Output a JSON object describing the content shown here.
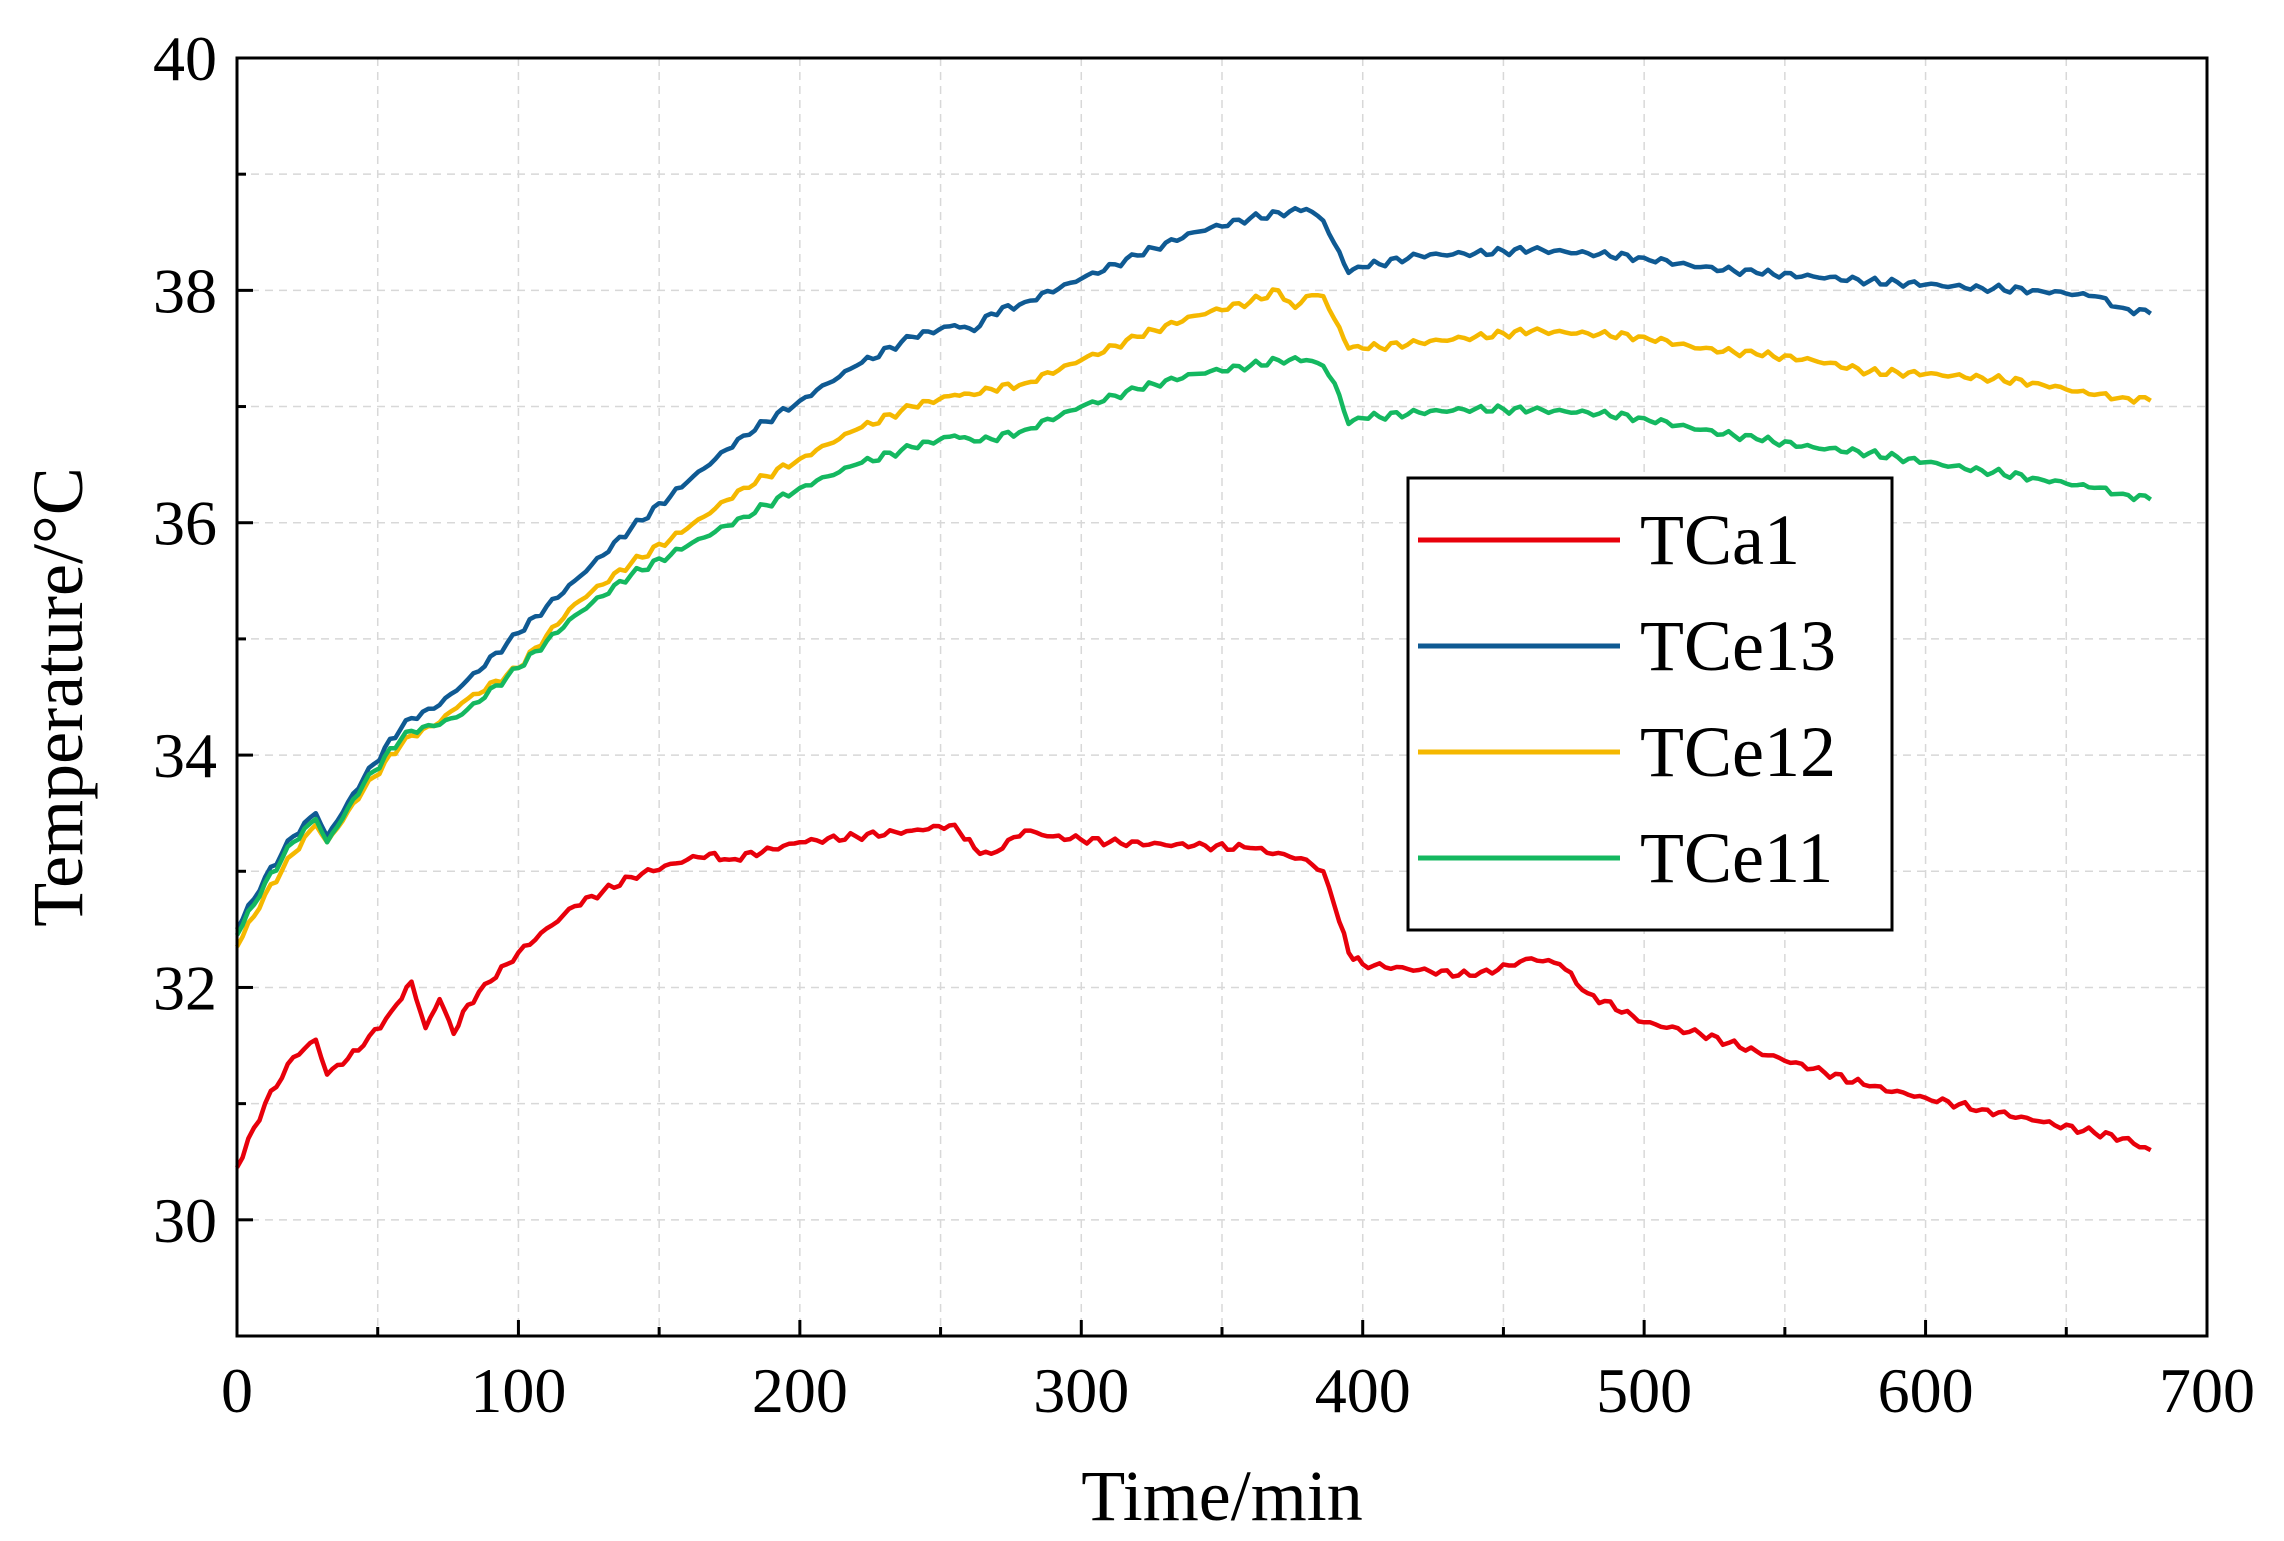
{
  "chart_data": {
    "type": "line",
    "title": "",
    "xlabel": "Time/min",
    "ylabel": "Temperature/°C",
    "xlim": [
      0,
      700
    ],
    "ylim": [
      29,
      40
    ],
    "xticks": [
      0,
      100,
      200,
      300,
      400,
      500,
      600,
      700
    ],
    "yticks": [
      30,
      32,
      34,
      36,
      38,
      40
    ],
    "xtick_labels": [
      "0",
      "100",
      "200",
      "300",
      "400",
      "500",
      "600",
      "700"
    ],
    "ytick_labels": [
      "30",
      "32",
      "34",
      "36",
      "38",
      "40"
    ],
    "grid": true,
    "legend_position": "right-middle",
    "series": [
      {
        "name": "TCa1",
        "color": "#e8000b",
        "x": [
          0,
          10,
          20,
          28,
          32,
          45,
          55,
          62,
          67,
          72,
          77,
          82,
          90,
          100,
          120,
          140,
          160,
          168,
          175,
          200,
          220,
          240,
          255,
          262,
          268,
          280,
          290,
          310,
          340,
          360,
          380,
          386,
          390,
          395,
          400,
          420,
          440,
          460,
          470,
          480,
          500,
          520,
          540,
          560,
          580,
          600,
          620,
          640,
          660,
          670,
          680
        ],
        "values": [
          30.45,
          31.0,
          31.4,
          31.55,
          31.25,
          31.5,
          31.8,
          32.05,
          31.65,
          31.9,
          31.6,
          31.85,
          32.05,
          32.3,
          32.7,
          32.95,
          33.1,
          33.15,
          33.1,
          33.25,
          33.3,
          33.35,
          33.4,
          33.2,
          33.15,
          33.35,
          33.3,
          33.25,
          33.22,
          33.2,
          33.1,
          33.0,
          32.7,
          32.3,
          32.2,
          32.15,
          32.1,
          32.25,
          32.2,
          31.95,
          31.7,
          31.6,
          31.45,
          31.3,
          31.15,
          31.05,
          30.95,
          30.85,
          30.75,
          30.7,
          30.6
        ]
      },
      {
        "name": "TCe13",
        "color": "#0f5a93",
        "x": [
          0,
          10,
          20,
          28,
          32,
          45,
          60,
          70,
          80,
          100,
          120,
          140,
          160,
          180,
          200,
          220,
          240,
          255,
          262,
          268,
          280,
          300,
          320,
          340,
          360,
          380,
          386,
          390,
          395,
          400,
          420,
          440,
          460,
          480,
          500,
          520,
          540,
          560,
          580,
          600,
          620,
          640,
          660,
          670,
          680
        ],
        "values": [
          32.5,
          32.95,
          33.3,
          33.5,
          33.3,
          33.8,
          34.3,
          34.4,
          34.6,
          35.05,
          35.5,
          35.95,
          36.35,
          36.75,
          37.05,
          37.35,
          37.6,
          37.7,
          37.65,
          37.8,
          37.9,
          38.1,
          38.3,
          38.5,
          38.62,
          38.7,
          38.6,
          38.4,
          38.15,
          38.2,
          38.3,
          38.32,
          38.35,
          38.32,
          38.28,
          38.2,
          38.15,
          38.12,
          38.08,
          38.05,
          38.02,
          38.0,
          37.95,
          37.85,
          37.8
        ]
      },
      {
        "name": "TCe12",
        "color": "#f5b800",
        "x": [
          0,
          10,
          20,
          28,
          32,
          45,
          60,
          70,
          80,
          100,
          120,
          140,
          160,
          180,
          200,
          220,
          240,
          255,
          262,
          268,
          280,
          300,
          320,
          340,
          360,
          370,
          376,
          380,
          386,
          390,
          395,
          400,
          420,
          440,
          460,
          480,
          500,
          520,
          540,
          560,
          580,
          600,
          620,
          640,
          660,
          670,
          680
        ],
        "values": [
          32.35,
          32.8,
          33.15,
          33.4,
          33.25,
          33.7,
          34.15,
          34.25,
          34.45,
          34.75,
          35.3,
          35.65,
          35.95,
          36.3,
          36.55,
          36.8,
          37.0,
          37.1,
          37.1,
          37.15,
          37.2,
          37.4,
          37.6,
          37.78,
          37.9,
          38.0,
          37.85,
          37.95,
          37.95,
          37.75,
          37.5,
          37.5,
          37.55,
          37.6,
          37.65,
          37.63,
          37.6,
          37.5,
          37.45,
          37.4,
          37.3,
          37.28,
          37.25,
          37.2,
          37.1,
          37.08,
          37.05
        ]
      },
      {
        "name": "TCe11",
        "color": "#14b860",
        "x": [
          0,
          10,
          20,
          28,
          32,
          45,
          60,
          70,
          80,
          100,
          120,
          140,
          160,
          180,
          200,
          220,
          240,
          255,
          262,
          268,
          280,
          300,
          320,
          340,
          360,
          370,
          380,
          386,
          390,
          395,
          400,
          420,
          440,
          460,
          480,
          500,
          520,
          540,
          560,
          580,
          600,
          620,
          640,
          660,
          670,
          680
        ],
        "values": [
          32.45,
          32.9,
          33.25,
          33.45,
          33.25,
          33.75,
          34.2,
          34.25,
          34.35,
          34.75,
          35.2,
          35.55,
          35.8,
          36.05,
          36.3,
          36.5,
          36.65,
          36.75,
          36.7,
          36.72,
          36.8,
          37.0,
          37.15,
          37.28,
          37.35,
          37.4,
          37.4,
          37.35,
          37.2,
          36.85,
          36.9,
          36.95,
          36.98,
          36.97,
          36.95,
          36.9,
          36.8,
          36.72,
          36.65,
          36.6,
          36.52,
          36.45,
          36.38,
          36.3,
          36.25,
          36.2
        ]
      }
    ]
  }
}
